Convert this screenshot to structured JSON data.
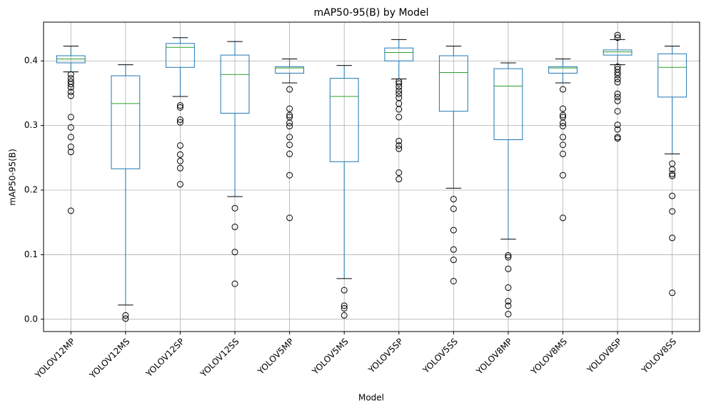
{
  "chart_data": {
    "type": "box",
    "title": "mAP50-95(B) by Model",
    "x_label": "Model",
    "y_label": "mAP50-95(B)",
    "categories": [
      "YOLOV12MP",
      "YOLOV12MS",
      "YOLOV12SP",
      "YOLOV12SS",
      "YOLOV5MP",
      "YOLOV5MS",
      "YOLOV5SP",
      "YOLOV5SS",
      "YOLOV8MP",
      "YOLOV8MS",
      "YOLOV8SP",
      "YOLOV8SS"
    ],
    "boxes": [
      {
        "whislo": 0.383,
        "q1": 0.397,
        "med": 0.403,
        "q3": 0.408,
        "whishi": 0.423,
        "fliers": [
          0.379,
          0.373,
          0.368,
          0.364,
          0.359,
          0.352,
          0.346,
          0.313,
          0.297,
          0.282,
          0.267,
          0.259,
          0.168
        ]
      },
      {
        "whislo": 0.022,
        "q1": 0.233,
        "med": 0.334,
        "q3": 0.377,
        "whishi": 0.394,
        "fliers": [
          0.006,
          0.001
        ]
      },
      {
        "whislo": 0.345,
        "q1": 0.39,
        "med": 0.421,
        "q3": 0.427,
        "whishi": 0.436,
        "fliers": [
          0.331,
          0.328,
          0.309,
          0.305,
          0.269,
          0.255,
          0.245,
          0.234,
          0.209
        ]
      },
      {
        "whislo": 0.19,
        "q1": 0.319,
        "med": 0.379,
        "q3": 0.409,
        "whishi": 0.43,
        "fliers": [
          0.172,
          0.143,
          0.104,
          0.055
        ]
      },
      {
        "whislo": 0.366,
        "q1": 0.381,
        "med": 0.389,
        "q3": 0.391,
        "whishi": 0.403,
        "fliers": [
          0.356,
          0.326,
          0.316,
          0.313,
          0.304,
          0.299,
          0.282,
          0.27,
          0.256,
          0.223,
          0.157
        ]
      },
      {
        "whislo": 0.063,
        "q1": 0.244,
        "med": 0.345,
        "q3": 0.373,
        "whishi": 0.393,
        "fliers": [
          0.045,
          0.021,
          0.017,
          0.006
        ]
      },
      {
        "whislo": 0.372,
        "q1": 0.4,
        "med": 0.413,
        "q3": 0.42,
        "whishi": 0.433,
        "fliers": [
          0.368,
          0.365,
          0.36,
          0.354,
          0.349,
          0.343,
          0.334,
          0.325,
          0.313,
          0.276,
          0.269,
          0.264,
          0.227,
          0.217
        ]
      },
      {
        "whislo": 0.203,
        "q1": 0.322,
        "med": 0.382,
        "q3": 0.408,
        "whishi": 0.423,
        "fliers": [
          0.186,
          0.171,
          0.138,
          0.108,
          0.092,
          0.059
        ]
      },
      {
        "whislo": 0.124,
        "q1": 0.278,
        "med": 0.361,
        "q3": 0.388,
        "whishi": 0.397,
        "fliers": [
          0.099,
          0.096,
          0.078,
          0.049,
          0.028,
          0.021,
          0.008
        ]
      },
      {
        "whislo": 0.366,
        "q1": 0.381,
        "med": 0.389,
        "q3": 0.391,
        "whishi": 0.403,
        "fliers": [
          0.356,
          0.326,
          0.316,
          0.313,
          0.304,
          0.299,
          0.282,
          0.27,
          0.256,
          0.223,
          0.157
        ]
      },
      {
        "whislo": 0.394,
        "q1": 0.409,
        "med": 0.414,
        "q3": 0.417,
        "whishi": 0.433,
        "fliers": [
          0.44,
          0.436,
          0.391,
          0.387,
          0.382,
          0.378,
          0.372,
          0.367,
          0.349,
          0.344,
          0.338,
          0.322,
          0.301,
          0.294,
          0.282,
          0.28
        ]
      },
      {
        "whislo": 0.256,
        "q1": 0.344,
        "med": 0.39,
        "q3": 0.411,
        "whishi": 0.423,
        "fliers": [
          0.241,
          0.232,
          0.225,
          0.222,
          0.191,
          0.167,
          0.126,
          0.041
        ]
      }
    ],
    "color": "#1f77b4",
    "median_color": "#2ca02c",
    "ylim": [
      -0.019,
      0.46
    ],
    "yticks": [
      {
        "value": 0,
        "label": "0.0"
      },
      0.1,
      0.2,
      0.3,
      0.4
    ],
    "grid": true
  }
}
